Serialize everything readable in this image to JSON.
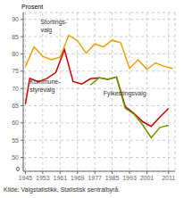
{
  "chart_data": {
    "type": "line",
    "ylabel": "Prosent",
    "source": "Kilde: Valgstatistikk, Statistisk sentralbyrå.",
    "xlim": [
      1944,
      2014
    ],
    "xticks": [
      1945,
      1953,
      1961,
      1969,
      1977,
      1985,
      1993,
      2001,
      2011
    ],
    "ylim": [
      46,
      92
    ],
    "yticks": [
      50,
      55,
      60,
      65,
      70,
      75,
      80,
      85,
      90
    ],
    "grid": true,
    "series": [
      {
        "color": "#e8a000",
        "x": [
          1945,
          1949,
          1953,
          1957,
          1961,
          1965,
          1969,
          1973,
          1977,
          1981,
          1985,
          1989,
          1993,
          1997,
          2001,
          2005,
          2009,
          2013
        ],
        "values": [
          76.4,
          82.0,
          79.3,
          78.3,
          79.1,
          85.4,
          83.8,
          80.2,
          82.9,
          82.0,
          84.0,
          83.2,
          75.8,
          78.3,
          75.5,
          77.4,
          76.4,
          75.8
        ]
      },
      {
        "color": "#cc0000",
        "x": [
          1945,
          1947,
          1951,
          1955,
          1959,
          1963,
          1967,
          1971,
          1975,
          1979,
          1983,
          1987,
          1991,
          1995,
          1999,
          2003,
          2007,
          2011
        ],
        "values": [
          65.5,
          72.9,
          71.9,
          72.9,
          74.6,
          81.2,
          72.0,
          71.3,
          72.8,
          73.1,
          72.6,
          73.3,
          64.8,
          62.8,
          60.4,
          59.0,
          61.7,
          64.2
        ]
      },
      {
        "color": "#669900",
        "x": [
          1975,
          1979,
          1983,
          1987,
          1991,
          1995,
          1999,
          2003,
          2007,
          2011
        ],
        "values": [
          71.0,
          73.1,
          72.6,
          73.3,
          64.3,
          62.6,
          59.5,
          55.7,
          58.7,
          59.3
        ]
      }
    ],
    "annotations": [
      {
        "text": "Stortings-\nvalg",
        "x": 1952,
        "y": 85.8
      },
      {
        "text": "Kommune-\nstyrevalg",
        "x": 1947,
        "y": 68.5
      },
      {
        "text": "Fylkestingsvalg",
        "x": 1981,
        "y": 67.5
      },
      {
        "text": "0"
      },
      {
        "text": "≈"
      }
    ]
  }
}
